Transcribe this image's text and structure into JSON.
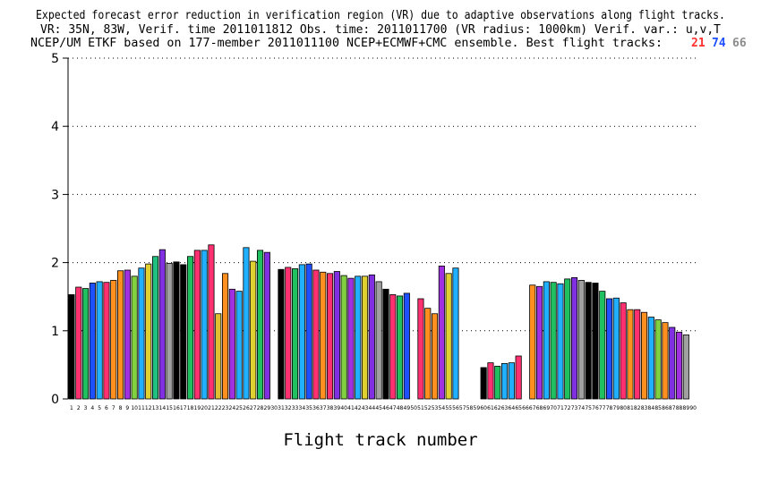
{
  "title_lines": [
    "Expected forecast error reduction in verification region (VR) due to adaptive observations along flight tracks.",
    "VR: 35N, 83W, Verif. time 2011011812 Obs. time: 2011011700 (VR radius: 1000km)  Verif. var.: u,v,T",
    "NCEP/UM ETKF based on 177-member 2011011100 NCEP+ECMWF+CMC ensemble. Best flight tracks:"
  ],
  "best_tracks": [
    {
      "value": "21",
      "color": "#ff3030"
    },
    {
      "value": "74",
      "color": "#1e50ff"
    },
    {
      "value": "66",
      "color": "#8c8c8c"
    }
  ],
  "chart_data": {
    "type": "bar",
    "title": "Expected forecast error reduction in verification region (VR) due to adaptive observations along flight tracks.",
    "xlabel": "Flight track number",
    "ylabel": "",
    "ylim": [
      0,
      5
    ],
    "yticks": [
      0,
      1,
      2,
      3,
      4,
      5
    ],
    "grid": "horizontal-dotted",
    "categories": [
      1,
      2,
      3,
      4,
      5,
      6,
      7,
      8,
      9,
      10,
      11,
      12,
      13,
      14,
      15,
      16,
      17,
      18,
      19,
      20,
      21,
      22,
      23,
      24,
      25,
      26,
      27,
      28,
      29,
      30,
      31,
      32,
      33,
      34,
      35,
      36,
      37,
      38,
      39,
      40,
      41,
      42,
      43,
      44,
      45,
      46,
      47,
      48,
      49,
      50,
      51,
      52,
      53,
      54,
      55,
      56,
      57,
      58,
      59,
      60,
      61,
      62,
      63,
      64,
      65,
      66,
      67,
      68,
      69,
      70,
      71,
      72,
      73,
      74,
      75,
      76,
      77,
      78,
      79,
      80,
      81,
      82,
      83,
      84,
      85,
      86,
      87,
      88,
      89,
      90
    ],
    "values": [
      1.53,
      1.64,
      1.62,
      1.7,
      1.72,
      1.71,
      1.74,
      1.88,
      1.89,
      1.8,
      1.92,
      1.98,
      2.09,
      2.19,
      1.99,
      2.01,
      1.97,
      2.09,
      2.18,
      2.18,
      2.26,
      1.25,
      1.84,
      1.61,
      1.58,
      2.22,
      2.02,
      2.18,
      2.15,
      0,
      1.9,
      1.93,
      1.91,
      1.97,
      1.98,
      1.89,
      1.86,
      1.84,
      1.87,
      1.81,
      1.77,
      1.8,
      1.8,
      1.82,
      1.72,
      1.61,
      1.53,
      1.51,
      1.55,
      0,
      1.47,
      1.33,
      1.25,
      1.95,
      1.84,
      1.92,
      0,
      0,
      0,
      0.46,
      0.53,
      0.48,
      0.52,
      0.53,
      0.63,
      0,
      1.67,
      1.65,
      1.72,
      1.71,
      1.69,
      1.76,
      1.78,
      1.74,
      1.71,
      1.7,
      1.58,
      1.47,
      1.48,
      1.41,
      1.31,
      1.31,
      1.27,
      1.2,
      1.16,
      1.12,
      1.05,
      0.98,
      0.94,
      0
    ],
    "colors": [
      "#000000",
      "#ff3070",
      "#20c060",
      "#1e50ff",
      "#20b0ff",
      "#ff3070",
      "#ff9020",
      "#ff9020",
      "#a030e0",
      "#80d040",
      "#20b0ff",
      "#e0d030",
      "#20c080",
      "#8030e0",
      "#a0a0a0",
      "#000000",
      "#000000",
      "#20c060",
      "#ff3070",
      "#20b0ff",
      "#ff3070",
      "#e0c030",
      "#ff9020",
      "#a030e0",
      "#20b0ff",
      "#20b0ff",
      "#e0d030",
      "#20c060",
      "#8030e0",
      "#000000",
      "#000000",
      "#ff3070",
      "#20c060",
      "#20b0ff",
      "#1e50ff",
      "#ff3070",
      "#ff9020",
      "#ff3070",
      "#8030e0",
      "#80d040",
      "#a030e0",
      "#20b0ff",
      "#e0d030",
      "#8030e0",
      "#a0a0a0",
      "#000000",
      "#ff3070",
      "#20c060",
      "#1e50ff",
      "#000000",
      "#ff3070",
      "#ff9020",
      "#ff9020",
      "#a030e0",
      "#e0d030",
      "#20b0ff",
      "#000000",
      "#000000",
      "#000000",
      "#000000",
      "#ff3070",
      "#20c060",
      "#20b0ff",
      "#20b0ff",
      "#ff3070",
      "#000000",
      "#ff9020",
      "#a030e0",
      "#20b0ff",
      "#20c060",
      "#20b0ff",
      "#20c060",
      "#8030e0",
      "#a0a0a0",
      "#000000",
      "#000000",
      "#20c060",
      "#1e50ff",
      "#20b0ff",
      "#ff3070",
      "#ff9020",
      "#ff3070",
      "#ff9020",
      "#20b0ff",
      "#80d040",
      "#ff9020",
      "#8030e0",
      "#a030e0",
      "#a0a0a0",
      "#a0a0a0"
    ]
  }
}
